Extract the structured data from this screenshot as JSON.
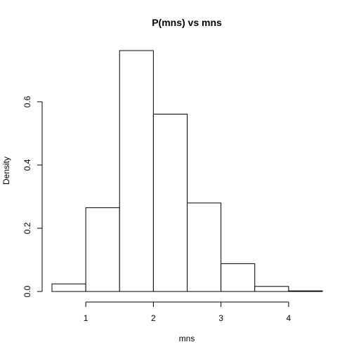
{
  "chart_data": {
    "type": "bar",
    "subtype": "histogram",
    "title": "P(mns) vs mns",
    "xlabel": "mns",
    "ylabel": "Density",
    "bin_edges": [
      0.5,
      1.0,
      1.5,
      2.0,
      2.5,
      3.0,
      3.5,
      4.0,
      4.5
    ],
    "values": [
      0.024,
      0.265,
      0.762,
      0.561,
      0.28,
      0.088,
      0.016,
      0.002
    ],
    "xlim": [
      0.5,
      4.5
    ],
    "ylim": [
      0,
      0.762
    ],
    "xticks": [
      1,
      2,
      3,
      4
    ],
    "xtick_labels": [
      "1",
      "2",
      "3",
      "4"
    ],
    "yticks": [
      0.0,
      0.2,
      0.4,
      0.6
    ],
    "ytick_labels": [
      "0.0",
      "0.2",
      "0.4",
      "0.6"
    ],
    "grid": false,
    "bar_fill": "#ffffff",
    "bar_stroke": "#000000"
  }
}
